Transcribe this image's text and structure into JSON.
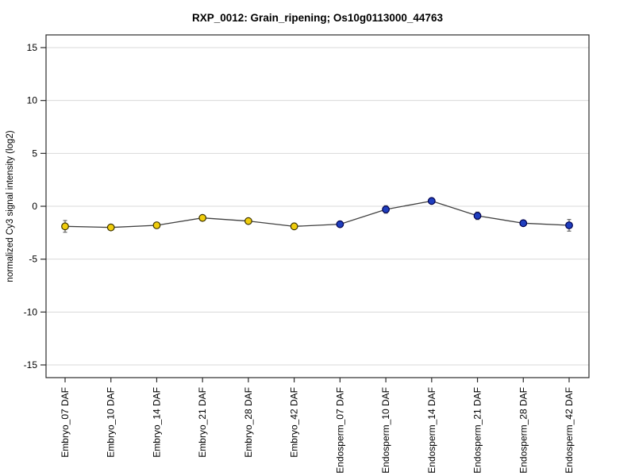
{
  "chart_data": {
    "type": "line",
    "title": "RXP_0012: Grain_ripening; Os10g0113000_44763",
    "xlabel": "",
    "ylabel": "normalized Cy3 signal intensity (log2)",
    "categories": [
      "Embryo_07 DAF",
      "Embryo_10 DAF",
      "Embryo_14 DAF",
      "Embryo_21 DAF",
      "Embryo_28 DAF",
      "Embryo_42 DAF",
      "Endosperm_07 DAF",
      "Endosperm_10 DAF",
      "Endosperm_14 DAF",
      "Endosperm_21 DAF",
      "Endosperm_28 DAF",
      "Endosperm_42 DAF"
    ],
    "values": [
      -1.9,
      -2.0,
      -1.8,
      -1.1,
      -1.4,
      -1.9,
      -1.7,
      -0.3,
      0.5,
      -0.9,
      -1.6,
      -1.8
    ],
    "errors": [
      0.55,
      0.1,
      0.2,
      0.15,
      0.15,
      0.15,
      0.25,
      0.35,
      0.2,
      0.35,
      0.25,
      0.55
    ],
    "groups": [
      "Embryo",
      "Embryo",
      "Embryo",
      "Embryo",
      "Embryo",
      "Embryo",
      "Endosperm",
      "Endosperm",
      "Endosperm",
      "Endosperm",
      "Endosperm",
      "Endosperm"
    ],
    "group_colors": {
      "Embryo": "#f0cd0c",
      "Endosperm": "#1f3ebe"
    },
    "group_edge_colors": {
      "Embryo": "#3d3400",
      "Endosperm": "#00004d"
    },
    "yticks": [
      -15,
      -10,
      -5,
      0,
      5,
      10,
      15
    ],
    "ylim": [
      -16.2,
      16.2
    ],
    "grid": true,
    "legend": "none",
    "line_color": "#404040",
    "error_bar_color": "#6e6e6e",
    "gridline_color": "#d9d9d9",
    "frame_color": "#2b2b2b"
  }
}
